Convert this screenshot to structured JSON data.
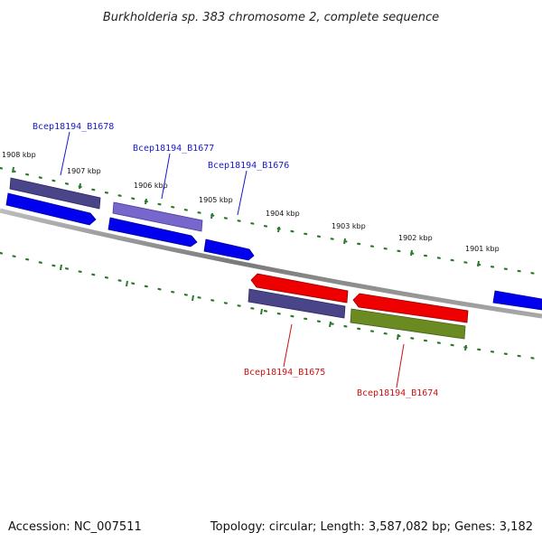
{
  "title": "Burkholderia sp. 383 chromosome 2, complete sequence",
  "footer": {
    "accession": "Accession: NC_007511",
    "stats": "Topology: circular; Length: 3,587,082 bp; Genes: 3,182"
  },
  "colors": {
    "backbone": "#888888",
    "tick": "#2a7a2a",
    "cds_forward": "#0000ee",
    "cds_reverse": "#ee0000",
    "gene_dark": "#4a4488",
    "gene_light": "#7766cc",
    "gene_green": "#6b8a22",
    "label_top": "#1a1acc",
    "label_bottom": "#cc1111"
  },
  "ticks": [
    "1908 kbp",
    "1907 kbp",
    "1906 kbp",
    "1905 kbp",
    "1904 kbp",
    "1903 kbp",
    "1902 kbp",
    "1901 kbp"
  ],
  "gene_labels_top": [
    "Bcep18194_B1678",
    "Bcep18194_B1677",
    "Bcep18194_B1676"
  ],
  "gene_labels_bottom": [
    "Bcep18194_B1675",
    "Bcep18194_B1674"
  ]
}
